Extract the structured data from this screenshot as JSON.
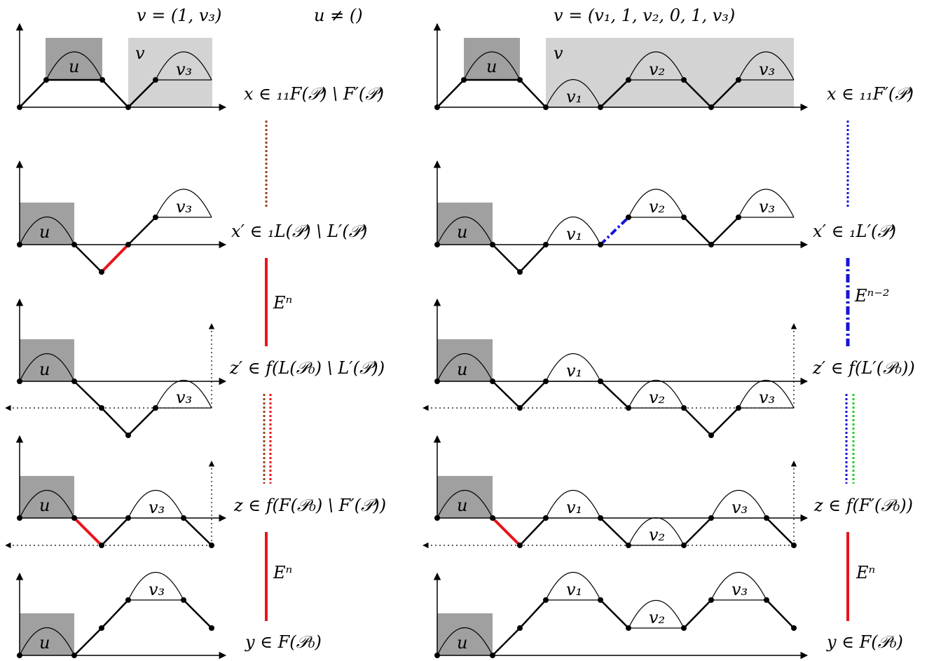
{
  "headers": {
    "left_v": "v = (1, v₃)",
    "left_u": "u ≠ ()",
    "right_v": "v = (v₁, 1, v₂, 0, 1, v₃)"
  },
  "left_labels": [
    "x ∈ ₁₁F(𝒫) \\ F′(𝒫)",
    "x′ ∈ ₁L(𝒫) \\ L′(𝒫)",
    "z′ ∈ f(L(𝒫₀) \\ L′(𝒫))",
    "z ∈ f(F(𝒫₀) \\ F′(𝒫))",
    "y ∈ F(𝒫₀)"
  ],
  "right_labels": [
    "x ∈ ₁₁F′(𝒫)",
    "x′ ∈ ₁L′(𝒫)",
    "z′ ∈ f(L′(𝒫₀))",
    "z ∈ f(F′(𝒫₀))",
    "y ∈ F(𝒫₀)"
  ],
  "connector_labels": {
    "left_en_1": "Eⁿ",
    "left_en_2": "Eⁿ",
    "right_en_n2": "Eⁿ⁻²",
    "right_en": "Eⁿ"
  },
  "box_labels": {
    "u": "u",
    "v": "v"
  },
  "arch_labels": {
    "v1": "v₁",
    "v2": "v₂",
    "v3": "v₃"
  },
  "colors": {
    "red": "#e8141c",
    "blue": "#1414d8",
    "green": "#22d022",
    "brown": "#9a4020",
    "dark_box": "#a0a0a0",
    "light_box": "#d3d3d3"
  }
}
